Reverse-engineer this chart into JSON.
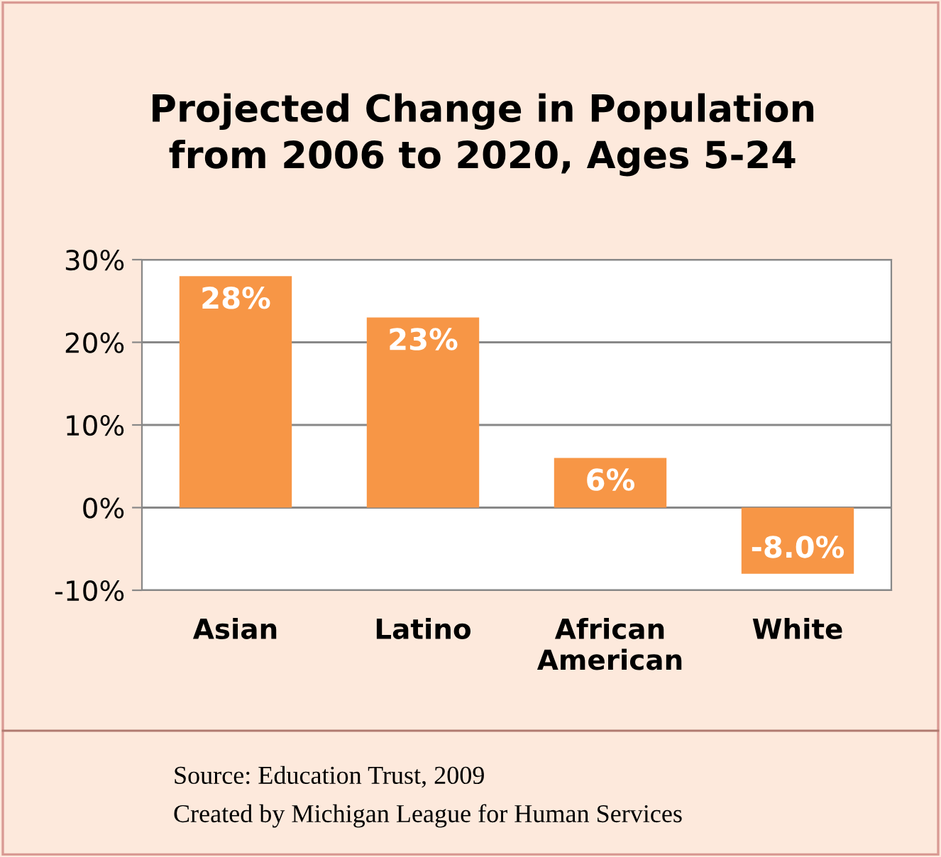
{
  "chart_data": {
    "type": "bar",
    "title": "Projected Change in Population\nfrom 2006 to 2020, Ages 5-24",
    "categories": [
      "Asian",
      "Latino",
      "African American",
      "White"
    ],
    "values": [
      28,
      23,
      6,
      -8.0
    ],
    "value_labels": [
      "28%",
      "23%",
      "6%",
      "-8.0%"
    ],
    "color": "#f79646",
    "ylim": [
      -10,
      30
    ],
    "yticks": [
      {
        "value": -10,
        "label": "-10%"
      },
      {
        "value": 0,
        "label": "0%"
      },
      {
        "value": 10,
        "label": "10%"
      },
      {
        "value": 20,
        "label": "20%"
      },
      {
        "value": 30,
        "label": "30%"
      }
    ],
    "grid": "y",
    "annotations": [
      "Source: Education Trust, 2009",
      "Created by Michigan League for Human Services"
    ]
  }
}
